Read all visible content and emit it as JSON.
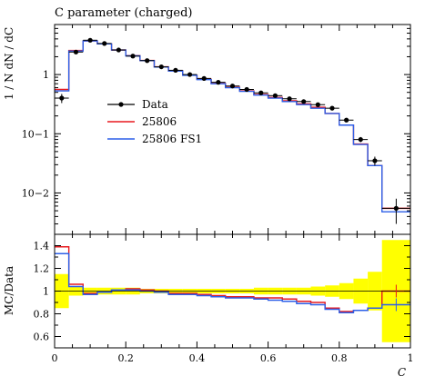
{
  "chart_data": {
    "type": "line",
    "title": "C parameter (charged)",
    "x": [
      0.02,
      0.06,
      0.1,
      0.14,
      0.18,
      0.22,
      0.26,
      0.3,
      0.34,
      0.38,
      0.42,
      0.46,
      0.5,
      0.54,
      0.58,
      0.62,
      0.66,
      0.7,
      0.74,
      0.78,
      0.82,
      0.86,
      0.9,
      0.96
    ],
    "bin_edges": [
      0,
      0.04,
      0.08,
      0.12,
      0.16,
      0.2,
      0.24,
      0.28,
      0.32,
      0.36,
      0.4,
      0.44,
      0.48,
      0.52,
      0.56,
      0.6,
      0.64,
      0.68,
      0.72,
      0.76,
      0.8,
      0.84,
      0.88,
      0.92,
      1.0
    ],
    "main_panel": {
      "ylabel": "1 / N dN / dC",
      "y_scale": "log",
      "ylim": [
        0.002,
        7
      ],
      "y_ticks": [
        {
          "value": 1,
          "label": "1"
        },
        {
          "value": 0.1,
          "label": "10−1"
        },
        {
          "value": 0.01,
          "label": "10−2"
        }
      ],
      "legend_position": "center-left",
      "series": [
        {
          "name": "Data",
          "kind": "points",
          "color": "#000000",
          "values": [
            0.4,
            2.4,
            3.8,
            3.35,
            2.6,
            2.05,
            1.72,
            1.35,
            1.18,
            1.0,
            0.86,
            0.74,
            0.64,
            0.56,
            0.49,
            0.44,
            0.39,
            0.35,
            0.31,
            0.27,
            0.17,
            0.08,
            0.035,
            0.0055
          ],
          "yerr": [
            0.07,
            0.1,
            0.12,
            0.1,
            0.08,
            0.06,
            0.05,
            0.04,
            0.04,
            0.03,
            0.03,
            0.02,
            0.02,
            0.02,
            0.02,
            0.015,
            0.015,
            0.015,
            0.015,
            0.015,
            0.01,
            0.008,
            0.006,
            0.0025
          ]
        },
        {
          "name": "25806",
          "kind": "histogram",
          "color": "#e8191e",
          "values": [
            0.56,
            2.55,
            3.7,
            3.3,
            2.6,
            2.08,
            1.73,
            1.35,
            1.16,
            0.98,
            0.83,
            0.71,
            0.61,
            0.53,
            0.46,
            0.41,
            0.36,
            0.32,
            0.28,
            0.22,
            0.14,
            0.067,
            0.029,
            0.0055
          ]
        },
        {
          "name": "25806 FS1",
          "kind": "histogram",
          "color": "#2c5fe8",
          "values": [
            0.53,
            2.5,
            3.7,
            3.3,
            2.6,
            2.07,
            1.72,
            1.34,
            1.15,
            0.97,
            0.82,
            0.7,
            0.6,
            0.52,
            0.45,
            0.4,
            0.35,
            0.31,
            0.27,
            0.22,
            0.14,
            0.066,
            0.029,
            0.0048
          ]
        }
      ]
    },
    "ratio_panel": {
      "ylabel": "MC/Data",
      "xlabel": "C",
      "ylim": [
        0.5,
        1.5
      ],
      "y_ticks": [
        {
          "value": 0.6,
          "label": "0.6"
        },
        {
          "value": 0.8,
          "label": "0.8"
        },
        {
          "value": 1.0,
          "label": "1"
        },
        {
          "value": 1.2,
          "label": "1.2"
        },
        {
          "value": 1.4,
          "label": "1.4"
        }
      ],
      "x_ticks": [
        {
          "value": 0,
          "label": "0"
        },
        {
          "value": 0.2,
          "label": "0.2"
        },
        {
          "value": 0.4,
          "label": "0.4"
        },
        {
          "value": 0.6,
          "label": "0.6"
        },
        {
          "value": 0.8,
          "label": "0.8"
        },
        {
          "value": 1.0,
          "label": "1"
        }
      ],
      "band_color": "#ffff00",
      "band_halfwidth": [
        0.15,
        0.04,
        0.03,
        0.03,
        0.03,
        0.03,
        0.02,
        0.02,
        0.02,
        0.02,
        0.02,
        0.02,
        0.02,
        0.02,
        0.03,
        0.03,
        0.03,
        0.03,
        0.04,
        0.05,
        0.07,
        0.11,
        0.17,
        0.45
      ],
      "series": [
        {
          "name": "25806",
          "color": "#e8191e",
          "values": [
            1.39,
            1.06,
            0.98,
            0.99,
            1.01,
            1.02,
            1.01,
            1.0,
            0.98,
            0.98,
            0.97,
            0.96,
            0.95,
            0.95,
            0.94,
            0.94,
            0.93,
            0.91,
            0.9,
            0.85,
            0.82,
            0.83,
            0.85,
            1.0
          ]
        },
        {
          "name": "25806 FS1",
          "color": "#2c5fe8",
          "values": [
            1.33,
            1.04,
            0.97,
            0.99,
            1.01,
            1.01,
            1.0,
            0.99,
            0.97,
            0.97,
            0.96,
            0.95,
            0.94,
            0.94,
            0.93,
            0.92,
            0.91,
            0.89,
            0.88,
            0.84,
            0.81,
            0.83,
            0.85,
            0.88
          ]
        }
      ]
    }
  }
}
